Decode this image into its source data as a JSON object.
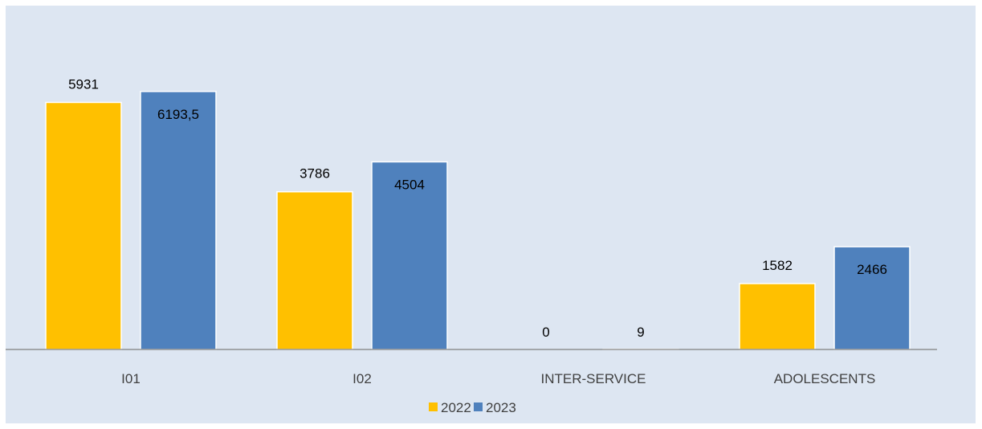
{
  "chart_data": {
    "type": "bar",
    "categories": [
      "I01",
      "I02",
      "INTER-SERVICE",
      "ADOLESCENTS"
    ],
    "series": [
      {
        "name": "2022",
        "values": [
          5931,
          3786,
          0,
          1582
        ],
        "labels": [
          "5931",
          "3786",
          "0",
          "1582"
        ],
        "color": "#ffc000"
      },
      {
        "name": "2023",
        "values": [
          6193.5,
          4504,
          9,
          2466
        ],
        "labels": [
          "6193,5",
          "4504",
          "9",
          "2466"
        ],
        "color": "#4f81bd"
      }
    ],
    "title": "",
    "xlabel": "",
    "ylabel": "",
    "ylim": [
      0,
      7000
    ],
    "grid": false,
    "legend_position": "bottom"
  },
  "colors": {
    "background": "#dde6f2",
    "axis": "#808080"
  }
}
